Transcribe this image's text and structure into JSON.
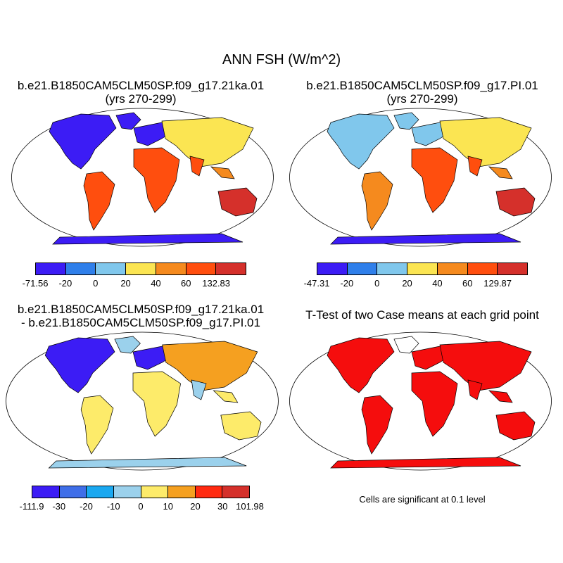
{
  "figure": {
    "title": "ANN FSH (W/m^2)",
    "panel1": {
      "title": "b.e21.B1850CAM5CLM50SP.f09_g17.21ka.01",
      "subtitle": "(yrs 270-299)",
      "colorbar": {
        "labels": [
          "-71.56",
          "-20",
          "0",
          "20",
          "40",
          "60",
          "132.83"
        ],
        "colors": [
          "#3c1cf5",
          "#2f7fea",
          "#80c7ec",
          "#fbe552",
          "#f58a1e",
          "#ff4e0e",
          "#d5302b"
        ]
      }
    },
    "panel2": {
      "title": "b.e21.B1850CAM5CLM50SP.f09_g17.PI.01",
      "subtitle": "(yrs 270-299)",
      "colorbar": {
        "labels": [
          "-47.31",
          "-20",
          "0",
          "20",
          "40",
          "60",
          "129.87"
        ],
        "colors": [
          "#3c1cf5",
          "#2f7fea",
          "#80c7ec",
          "#fbe552",
          "#f58a1e",
          "#ff4e0e",
          "#d5302b"
        ]
      }
    },
    "panel3": {
      "title": "b.e21.B1850CAM5CLM50SP.f09_g17.21ka.01",
      "subtitle": "- b.e21.B1850CAM5CLM50SP.f09_g17.PI.01",
      "colorbar": {
        "labels": [
          "-111.9",
          "-30",
          "-20",
          "-10",
          "0",
          "10",
          "20",
          "30",
          "101.98"
        ],
        "colors": [
          "#3c1cf5",
          "#3f6ee8",
          "#1aa8f0",
          "#9bd1ec",
          "#fdeb6a",
          "#f5a020",
          "#ff2a10",
          "#d5302b"
        ]
      }
    },
    "panel4": {
      "title": "T-Test of two Case means at each grid point",
      "note": "Cells are significant at 0.1 level",
      "color": "#f50d0d"
    }
  }
}
